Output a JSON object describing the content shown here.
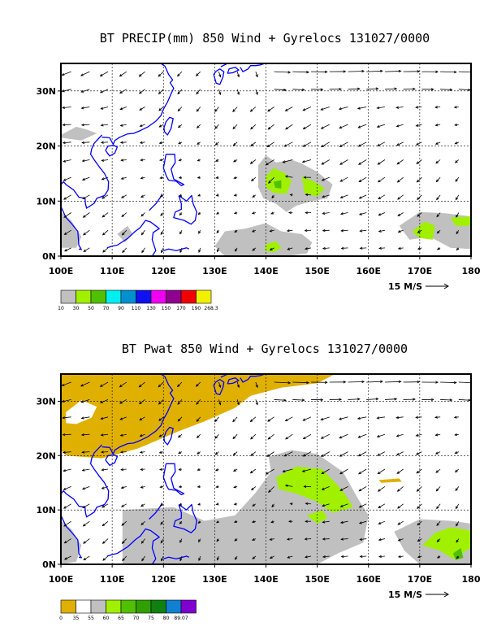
{
  "panels": [
    {
      "id": "precip",
      "title": "BT PRECIP(mm) 850 Wind + Gyrelocs 131027/0000",
      "x_ticks": [
        "100E",
        "110E",
        "120E",
        "130E",
        "140E",
        "150E",
        "160E",
        "170E",
        "180"
      ],
      "y_ticks": [
        "0N",
        "10N",
        "20N",
        "30N"
      ],
      "scale_label": "15 M/S",
      "colorbar": {
        "colors": [
          "#c0c0c0",
          "#a0f000",
          "#50c000",
          "#00f0f0",
          "#0090d0",
          "#1010f0",
          "#f000f0",
          "#900090",
          "#f00000",
          "#f0f000"
        ],
        "labels": [
          "10",
          "30",
          "50",
          "70",
          "90",
          "110",
          "130",
          "150",
          "170",
          "190",
          "268.3"
        ]
      }
    },
    {
      "id": "pwat",
      "title": "BT Pwat 850 Wind + Gyrelocs 131027/0000",
      "x_ticks": [
        "100E",
        "110E",
        "120E",
        "130E",
        "140E",
        "150E",
        "160E",
        "170E",
        "180"
      ],
      "y_ticks": [
        "0N",
        "10N",
        "20N",
        "30N"
      ],
      "scale_label": "15 M/S",
      "colorbar": {
        "colors": [
          "#e0b000",
          "#ffffff",
          "#c0c0c0",
          "#a0f000",
          "#50c000",
          "#30a000",
          "#108010",
          "#1080d0",
          "#8000d0"
        ],
        "labels": [
          "0",
          "35",
          "55",
          "60",
          "65",
          "70",
          "75",
          "80",
          "89.07"
        ]
      }
    }
  ],
  "map": {
    "lon_range": [
      100,
      180
    ],
    "lat_range": [
      0,
      35
    ],
    "coast_color": "#0000ff"
  },
  "wind_field": "850 hPa vectors"
}
